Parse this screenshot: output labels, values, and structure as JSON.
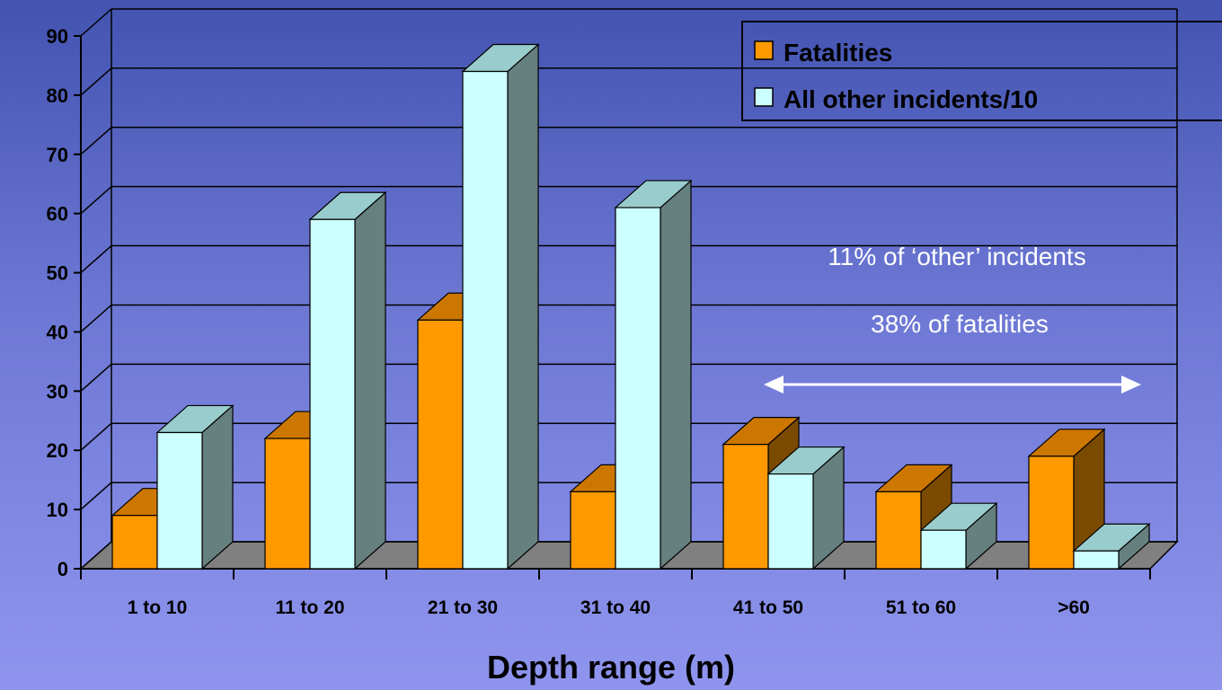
{
  "chart_data": {
    "type": "bar",
    "categories": [
      "1 to 10",
      "11 to 20",
      "21 to 30",
      "31 to 40",
      "41 to 50",
      "51 to 60",
      ">60"
    ],
    "series": [
      {
        "name": "Fatalities",
        "values": [
          9,
          22,
          42,
          13,
          21,
          13,
          19
        ],
        "color": "#ff9900"
      },
      {
        "name": "All other incidents/10",
        "values": [
          23,
          59,
          84,
          61,
          16,
          6.5,
          3
        ],
        "color": "#ccffff"
      }
    ],
    "title": "",
    "xlabel": "Depth range (m)",
    "ylabel": "",
    "ylim": [
      0,
      90
    ],
    "yticks": [
      0,
      10,
      20,
      30,
      40,
      50,
      60,
      70,
      80,
      90
    ],
    "grid": true,
    "legend": "top-right",
    "style": "3d",
    "annotations": [
      "11% of ‘other’ incidents",
      "38% of fatalities"
    ],
    "annotation_arrow": {
      "from": "41 to 50",
      "to": ">60",
      "style": "double-headed"
    }
  }
}
